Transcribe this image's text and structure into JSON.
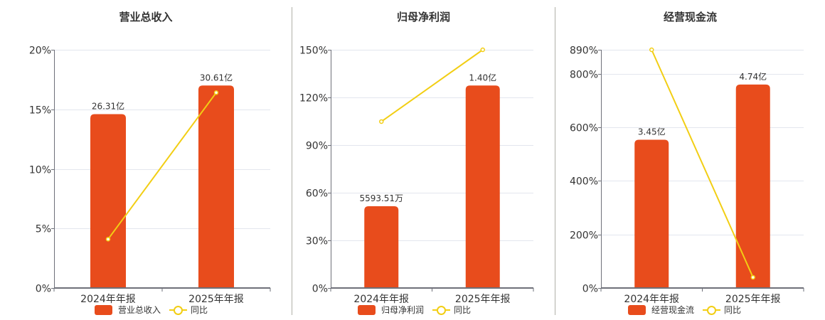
{
  "colors": {
    "bar": "#e84c1c",
    "line": "#f2ce14",
    "grid": "#e3e6ee",
    "axis": "#6e7079",
    "separator": "#b0b0a8"
  },
  "legend": {
    "line_label": "同比"
  },
  "chart_data": [
    {
      "type": "bar+line",
      "title": "营业总收入",
      "categories": [
        "2024年年报",
        "2025年年报"
      ],
      "series": [
        {
          "name": "营业总收入",
          "type": "bar",
          "values": [
            26.31,
            30.61
          ],
          "unit": "亿",
          "labels": [
            "26.31亿",
            "30.61亿"
          ]
        },
        {
          "name": "同比",
          "type": "line",
          "values": [
            4.1,
            16.4
          ],
          "unit": "%"
        }
      ],
      "yaxis": {
        "ticks": [
          "0%",
          "5%",
          "10%",
          "15%",
          "20%"
        ],
        "tick_values": [
          0,
          5,
          10,
          15,
          20
        ],
        "ylim": [
          0,
          20
        ]
      },
      "bar_heights_pct_axis": [
        14.6,
        17.0
      ],
      "grid": true,
      "legend_position": "bottom"
    },
    {
      "type": "bar+line",
      "title": "归母净利润",
      "categories": [
        "2024年年报",
        "2025年年报"
      ],
      "series": [
        {
          "name": "归母净利润",
          "type": "bar",
          "values": [
            0.559351,
            1.4
          ],
          "unit": "亿",
          "labels": [
            "5593.51万",
            "1.40亿"
          ]
        },
        {
          "name": "同比",
          "type": "line",
          "values": [
            104.8,
            150.0
          ],
          "unit": "%"
        }
      ],
      "yaxis": {
        "ticks": [
          "0%",
          "30%",
          "60%",
          "90%",
          "120%",
          "150%"
        ],
        "tick_values": [
          0,
          30,
          60,
          90,
          120,
          150
        ],
        "ylim": [
          0,
          150
        ]
      },
      "bar_heights_pct_axis": [
        51.5,
        127.5
      ],
      "grid": true,
      "legend_position": "bottom"
    },
    {
      "type": "bar+line",
      "title": "经营现金流",
      "categories": [
        "2024年年报",
        "2025年年报"
      ],
      "series": [
        {
          "name": "经营现金流",
          "type": "bar",
          "values": [
            3.45,
            4.74
          ],
          "unit": "亿",
          "labels": [
            "3.45亿",
            "4.74亿"
          ]
        },
        {
          "name": "同比",
          "type": "line",
          "values": [
            890,
            40
          ],
          "unit": "%"
        }
      ],
      "yaxis": {
        "ticks": [
          "0%",
          "200%",
          "400%",
          "600%",
          "800%",
          "890%"
        ],
        "tick_values": [
          0,
          200,
          400,
          600,
          800,
          890
        ],
        "ylim": [
          0,
          890
        ]
      },
      "bar_heights_pct_axis": [
        554,
        760
      ],
      "grid": true,
      "legend_position": "bottom"
    }
  ]
}
